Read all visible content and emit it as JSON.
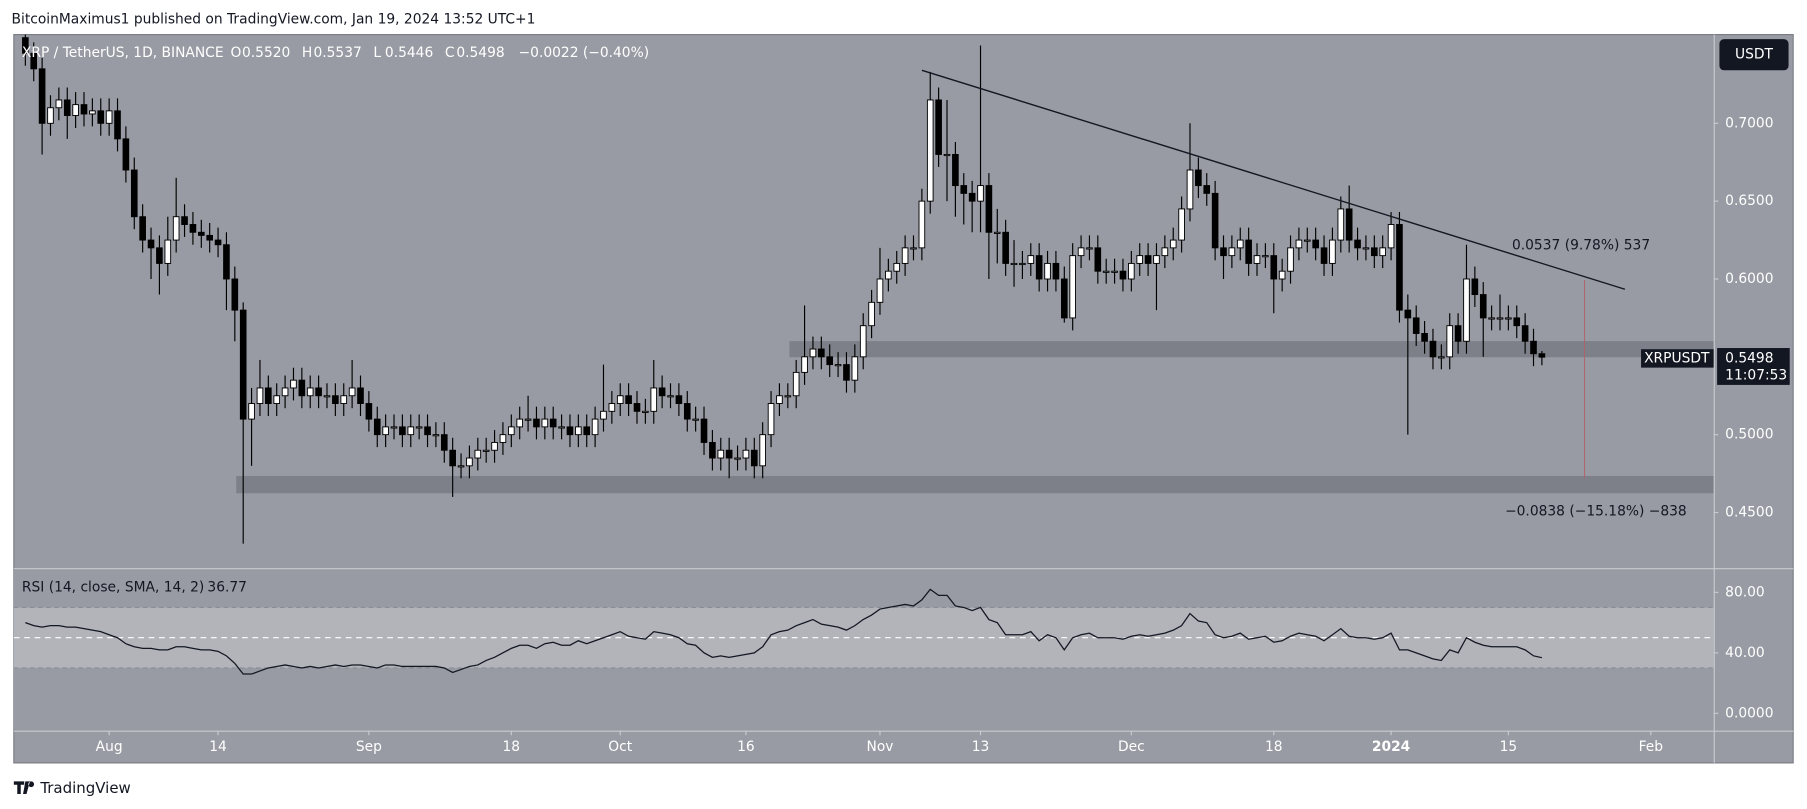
{
  "header": {
    "text": "BitcoinMaximus1 published on TradingView.com, Jan 19, 2024 13:52 UTC+1"
  },
  "chart_data": {
    "type": "candlestick",
    "symbol": "XRP / TetherUS, 1D, BINANCE",
    "legend": [
      [
        "O",
        "0.5520"
      ],
      [
        "H",
        "0.5537"
      ],
      [
        "L",
        "0.5446"
      ],
      [
        "C",
        "0.5498"
      ]
    ],
    "change": "−0.0022 (−0.40%)",
    "currency": "USDT",
    "up_color": "#ffffff",
    "down_color": "#000000",
    "candles": [
      [
        0.755,
        0.762,
        0.737,
        0.745
      ],
      [
        0.745,
        0.752,
        0.727,
        0.735
      ],
      [
        0.735,
        0.742,
        0.68,
        0.7
      ],
      [
        0.7,
        0.718,
        0.692,
        0.71
      ],
      [
        0.71,
        0.723,
        0.702,
        0.715
      ],
      [
        0.715,
        0.723,
        0.69,
        0.705
      ],
      [
        0.705,
        0.72,
        0.697,
        0.712
      ],
      [
        0.712,
        0.72,
        0.698,
        0.706
      ],
      [
        0.706,
        0.716,
        0.698,
        0.708
      ],
      [
        0.708,
        0.716,
        0.692,
        0.7
      ],
      [
        0.7,
        0.716,
        0.692,
        0.708
      ],
      [
        0.708,
        0.716,
        0.682,
        0.69
      ],
      [
        0.69,
        0.698,
        0.662,
        0.67
      ],
      [
        0.67,
        0.678,
        0.632,
        0.64
      ],
      [
        0.64,
        0.648,
        0.617,
        0.625
      ],
      [
        0.625,
        0.633,
        0.6,
        0.62
      ],
      [
        0.62,
        0.628,
        0.59,
        0.61
      ],
      [
        0.61,
        0.64,
        0.602,
        0.625
      ],
      [
        0.625,
        0.665,
        0.617,
        0.64
      ],
      [
        0.64,
        0.648,
        0.627,
        0.635
      ],
      [
        0.635,
        0.643,
        0.622,
        0.63
      ],
      [
        0.63,
        0.638,
        0.62,
        0.628
      ],
      [
        0.628,
        0.636,
        0.617,
        0.625
      ],
      [
        0.625,
        0.633,
        0.614,
        0.622
      ],
      [
        0.622,
        0.63,
        0.58,
        0.6
      ],
      [
        0.6,
        0.608,
        0.56,
        0.58
      ],
      [
        0.58,
        0.585,
        0.43,
        0.51
      ],
      [
        0.51,
        0.53,
        0.48,
        0.52
      ],
      [
        0.52,
        0.548,
        0.512,
        0.53
      ],
      [
        0.53,
        0.538,
        0.512,
        0.52
      ],
      [
        0.52,
        0.533,
        0.512,
        0.525
      ],
      [
        0.525,
        0.538,
        0.517,
        0.53
      ],
      [
        0.53,
        0.543,
        0.522,
        0.535
      ],
      [
        0.535,
        0.543,
        0.517,
        0.525
      ],
      [
        0.525,
        0.538,
        0.517,
        0.53
      ],
      [
        0.53,
        0.538,
        0.517,
        0.525
      ],
      [
        0.525,
        0.533,
        0.517,
        0.525
      ],
      [
        0.525,
        0.533,
        0.512,
        0.52
      ],
      [
        0.52,
        0.533,
        0.512,
        0.525
      ],
      [
        0.525,
        0.548,
        0.517,
        0.53
      ],
      [
        0.53,
        0.538,
        0.512,
        0.52
      ],
      [
        0.52,
        0.528,
        0.502,
        0.51
      ],
      [
        0.51,
        0.518,
        0.492,
        0.5
      ],
      [
        0.5,
        0.513,
        0.492,
        0.505
      ],
      [
        0.505,
        0.513,
        0.497,
        0.505
      ],
      [
        0.505,
        0.513,
        0.492,
        0.5
      ],
      [
        0.5,
        0.513,
        0.492,
        0.505
      ],
      [
        0.505,
        0.513,
        0.497,
        0.505
      ],
      [
        0.505,
        0.513,
        0.492,
        0.5
      ],
      [
        0.5,
        0.508,
        0.492,
        0.5
      ],
      [
        0.5,
        0.508,
        0.482,
        0.49
      ],
      [
        0.49,
        0.498,
        0.46,
        0.48
      ],
      [
        0.48,
        0.488,
        0.472,
        0.48
      ],
      [
        0.48,
        0.493,
        0.472,
        0.485
      ],
      [
        0.485,
        0.498,
        0.477,
        0.49
      ],
      [
        0.49,
        0.498,
        0.482,
        0.49
      ],
      [
        0.49,
        0.503,
        0.482,
        0.495
      ],
      [
        0.495,
        0.508,
        0.487,
        0.5
      ],
      [
        0.5,
        0.513,
        0.492,
        0.505
      ],
      [
        0.505,
        0.518,
        0.497,
        0.51
      ],
      [
        0.51,
        0.525,
        0.502,
        0.51
      ],
      [
        0.51,
        0.518,
        0.497,
        0.505
      ],
      [
        0.505,
        0.518,
        0.497,
        0.51
      ],
      [
        0.51,
        0.518,
        0.497,
        0.505
      ],
      [
        0.505,
        0.513,
        0.497,
        0.505
      ],
      [
        0.505,
        0.513,
        0.492,
        0.5
      ],
      [
        0.5,
        0.513,
        0.492,
        0.505
      ],
      [
        0.505,
        0.513,
        0.492,
        0.5
      ],
      [
        0.5,
        0.518,
        0.492,
        0.51
      ],
      [
        0.51,
        0.545,
        0.502,
        0.515
      ],
      [
        0.515,
        0.528,
        0.507,
        0.52
      ],
      [
        0.52,
        0.533,
        0.512,
        0.525
      ],
      [
        0.525,
        0.533,
        0.512,
        0.52
      ],
      [
        0.52,
        0.528,
        0.507,
        0.515
      ],
      [
        0.515,
        0.523,
        0.507,
        0.515
      ],
      [
        0.515,
        0.548,
        0.507,
        0.53
      ],
      [
        0.53,
        0.538,
        0.517,
        0.525
      ],
      [
        0.525,
        0.533,
        0.517,
        0.525
      ],
      [
        0.525,
        0.533,
        0.512,
        0.52
      ],
      [
        0.52,
        0.528,
        0.502,
        0.51
      ],
      [
        0.51,
        0.518,
        0.502,
        0.51
      ],
      [
        0.51,
        0.518,
        0.487,
        0.495
      ],
      [
        0.495,
        0.503,
        0.477,
        0.485
      ],
      [
        0.485,
        0.498,
        0.477,
        0.49
      ],
      [
        0.49,
        0.498,
        0.472,
        0.485
      ],
      [
        0.485,
        0.493,
        0.477,
        0.485
      ],
      [
        0.485,
        0.498,
        0.477,
        0.49
      ],
      [
        0.49,
        0.498,
        0.472,
        0.48
      ],
      [
        0.48,
        0.508,
        0.472,
        0.5
      ],
      [
        0.5,
        0.528,
        0.492,
        0.52
      ],
      [
        0.52,
        0.533,
        0.512,
        0.525
      ],
      [
        0.525,
        0.533,
        0.517,
        0.525
      ],
      [
        0.525,
        0.548,
        0.517,
        0.54
      ],
      [
        0.54,
        0.583,
        0.532,
        0.55
      ],
      [
        0.55,
        0.563,
        0.542,
        0.555
      ],
      [
        0.555,
        0.563,
        0.542,
        0.55
      ],
      [
        0.55,
        0.558,
        0.537,
        0.545
      ],
      [
        0.545,
        0.553,
        0.537,
        0.545
      ],
      [
        0.545,
        0.553,
        0.527,
        0.535
      ],
      [
        0.535,
        0.558,
        0.527,
        0.55
      ],
      [
        0.55,
        0.578,
        0.542,
        0.57
      ],
      [
        0.57,
        0.593,
        0.562,
        0.585
      ],
      [
        0.585,
        0.62,
        0.577,
        0.6
      ],
      [
        0.6,
        0.613,
        0.592,
        0.605
      ],
      [
        0.605,
        0.618,
        0.597,
        0.61
      ],
      [
        0.61,
        0.628,
        0.602,
        0.62
      ],
      [
        0.62,
        0.628,
        0.612,
        0.62
      ],
      [
        0.62,
        0.658,
        0.612,
        0.65
      ],
      [
        0.65,
        0.733,
        0.642,
        0.715
      ],
      [
        0.715,
        0.723,
        0.672,
        0.68
      ],
      [
        0.68,
        0.715,
        0.65,
        0.68
      ],
      [
        0.68,
        0.688,
        0.64,
        0.66
      ],
      [
        0.66,
        0.668,
        0.635,
        0.655
      ],
      [
        0.655,
        0.663,
        0.63,
        0.65
      ],
      [
        0.65,
        0.75,
        0.63,
        0.66
      ],
      [
        0.66,
        0.668,
        0.6,
        0.63
      ],
      [
        0.63,
        0.645,
        0.61,
        0.63
      ],
      [
        0.63,
        0.638,
        0.602,
        0.61
      ],
      [
        0.61,
        0.625,
        0.595,
        0.61
      ],
      [
        0.61,
        0.618,
        0.6,
        0.61
      ],
      [
        0.61,
        0.623,
        0.602,
        0.615
      ],
      [
        0.615,
        0.623,
        0.592,
        0.6
      ],
      [
        0.6,
        0.618,
        0.592,
        0.61
      ],
      [
        0.61,
        0.618,
        0.592,
        0.6
      ],
      [
        0.6,
        0.608,
        0.572,
        0.575
      ],
      [
        0.575,
        0.623,
        0.567,
        0.615
      ],
      [
        0.615,
        0.628,
        0.607,
        0.62
      ],
      [
        0.62,
        0.628,
        0.612,
        0.62
      ],
      [
        0.62,
        0.628,
        0.597,
        0.605
      ],
      [
        0.605,
        0.613,
        0.597,
        0.605
      ],
      [
        0.605,
        0.613,
        0.597,
        0.605
      ],
      [
        0.605,
        0.613,
        0.592,
        0.6
      ],
      [
        0.6,
        0.618,
        0.592,
        0.61
      ],
      [
        0.61,
        0.623,
        0.602,
        0.615
      ],
      [
        0.615,
        0.623,
        0.602,
        0.61
      ],
      [
        0.61,
        0.623,
        0.58,
        0.615
      ],
      [
        0.615,
        0.628,
        0.607,
        0.62
      ],
      [
        0.62,
        0.633,
        0.612,
        0.625
      ],
      [
        0.625,
        0.653,
        0.617,
        0.645
      ],
      [
        0.645,
        0.7,
        0.637,
        0.67
      ],
      [
        0.67,
        0.678,
        0.652,
        0.66
      ],
      [
        0.66,
        0.668,
        0.647,
        0.655
      ],
      [
        0.655,
        0.663,
        0.612,
        0.62
      ],
      [
        0.62,
        0.628,
        0.6,
        0.615
      ],
      [
        0.615,
        0.628,
        0.607,
        0.62
      ],
      [
        0.62,
        0.633,
        0.612,
        0.625
      ],
      [
        0.625,
        0.633,
        0.602,
        0.61
      ],
      [
        0.61,
        0.623,
        0.602,
        0.615
      ],
      [
        0.615,
        0.623,
        0.607,
        0.615
      ],
      [
        0.615,
        0.623,
        0.578,
        0.6
      ],
      [
        0.6,
        0.613,
        0.592,
        0.605
      ],
      [
        0.605,
        0.628,
        0.597,
        0.62
      ],
      [
        0.62,
        0.633,
        0.612,
        0.625
      ],
      [
        0.625,
        0.633,
        0.617,
        0.625
      ],
      [
        0.625,
        0.633,
        0.612,
        0.62
      ],
      [
        0.62,
        0.628,
        0.602,
        0.61
      ],
      [
        0.61,
        0.633,
        0.602,
        0.625
      ],
      [
        0.625,
        0.653,
        0.617,
        0.645
      ],
      [
        0.645,
        0.66,
        0.617,
        0.625
      ],
      [
        0.625,
        0.633,
        0.612,
        0.62
      ],
      [
        0.62,
        0.628,
        0.612,
        0.62
      ],
      [
        0.62,
        0.628,
        0.607,
        0.615
      ],
      [
        0.615,
        0.628,
        0.607,
        0.62
      ],
      [
        0.62,
        0.643,
        0.612,
        0.635
      ],
      [
        0.635,
        0.643,
        0.572,
        0.58
      ],
      [
        0.58,
        0.59,
        0.5,
        0.575
      ],
      [
        0.575,
        0.583,
        0.557,
        0.565
      ],
      [
        0.565,
        0.573,
        0.552,
        0.56
      ],
      [
        0.56,
        0.568,
        0.542,
        0.55
      ],
      [
        0.55,
        0.558,
        0.542,
        0.55
      ],
      [
        0.55,
        0.578,
        0.542,
        0.57
      ],
      [
        0.57,
        0.578,
        0.552,
        0.56
      ],
      [
        0.56,
        0.622,
        0.552,
        0.6
      ],
      [
        0.6,
        0.608,
        0.582,
        0.59
      ],
      [
        0.59,
        0.598,
        0.55,
        0.575
      ],
      [
        0.575,
        0.583,
        0.567,
        0.575
      ],
      [
        0.575,
        0.59,
        0.567,
        0.575
      ],
      [
        0.575,
        0.583,
        0.567,
        0.575
      ],
      [
        0.575,
        0.583,
        0.562,
        0.57
      ],
      [
        0.57,
        0.578,
        0.552,
        0.56
      ],
      [
        0.56,
        0.568,
        0.544,
        0.552
      ],
      [
        0.552,
        0.5537,
        0.5446,
        0.5498
      ]
    ],
    "xlim": [
      -1.375,
      201.5
    ],
    "xticks": [
      {
        "value": 10,
        "label": "Aug"
      },
      {
        "value": 23,
        "label": "14"
      },
      {
        "value": 41,
        "label": "Sep"
      },
      {
        "value": 58,
        "label": "18"
      },
      {
        "value": 71,
        "label": "Oct"
      },
      {
        "value": 86,
        "label": "16"
      },
      {
        "value": 102,
        "label": "Nov"
      },
      {
        "value": 114,
        "label": "13"
      },
      {
        "value": 132,
        "label": "Dec"
      },
      {
        "value": 149,
        "label": "18"
      },
      {
        "value": 163,
        "label": "2024"
      },
      {
        "value": 177,
        "label": "15"
      },
      {
        "value": 194,
        "label": "Feb"
      }
    ],
    "ylim": [
      0.415,
      0.757
    ],
    "yticks": [
      {
        "value": 0.7,
        "label": "0.7000"
      },
      {
        "value": 0.65,
        "label": "0.6500"
      },
      {
        "value": 0.6,
        "label": "0.6000"
      },
      {
        "value": 0.5,
        "label": "0.5000"
      },
      {
        "value": 0.45,
        "label": "0.4500"
      }
    ],
    "price_label": {
      "name": "XRPUSDT",
      "value": "0.5498",
      "countdown": "11:07:53"
    },
    "annotations": [
      "0.0537 (9.78%) 537",
      "−0.0838 (−15.18%) −838"
    ],
    "rsi": {
      "title": "RSI (14, close, SMA, 14, 2)",
      "value_label": "36.77",
      "values": [
        60,
        58,
        57,
        58,
        58,
        57,
        57,
        56,
        55,
        54,
        52,
        50,
        46,
        44,
        43,
        43,
        42,
        42,
        44,
        44,
        43,
        42,
        42,
        41,
        38,
        33,
        26,
        26,
        28,
        30,
        31,
        32,
        31,
        30,
        31,
        30,
        31,
        32,
        31,
        32,
        32,
        31,
        30,
        32,
        32,
        31,
        31,
        31,
        31,
        31,
        30,
        27,
        29,
        31,
        32,
        35,
        37,
        40,
        43,
        45,
        45,
        43,
        46,
        47,
        45,
        45,
        48,
        46,
        48,
        50,
        52,
        54,
        51,
        50,
        49,
        54,
        53,
        52,
        50,
        46,
        45,
        40,
        37,
        38,
        37,
        38,
        39,
        40,
        44,
        52,
        54,
        55,
        58,
        60,
        62,
        59,
        58,
        57,
        55,
        58,
        62,
        65,
        69,
        70,
        71,
        72,
        71,
        75,
        82,
        78,
        78,
        71,
        70,
        68,
        70,
        62,
        60,
        52,
        52,
        52,
        54,
        48,
        52,
        50,
        42,
        50,
        52,
        53,
        50,
        50,
        50,
        49,
        51,
        52,
        51,
        52,
        53,
        55,
        58,
        66,
        61,
        60,
        52,
        50,
        51,
        53,
        49,
        50,
        51,
        47,
        48,
        51,
        53,
        52,
        51,
        48,
        52,
        56,
        51,
        50,
        50,
        49,
        50,
        53,
        42,
        42,
        40,
        38,
        36,
        35,
        42,
        40,
        50,
        47,
        45,
        44,
        44,
        44,
        44,
        42,
        38,
        36.77
      ],
      "ylim": [
        -10.7,
        94.5
      ],
      "yticks": [
        {
          "value": 80,
          "label": "80.00"
        },
        {
          "value": 40,
          "label": "40.00"
        },
        {
          "value": 0,
          "label": "0.0000"
        }
      ],
      "band": [
        30,
        70
      ],
      "mid": 50
    }
  },
  "footer": {
    "brand": "TradingView"
  }
}
